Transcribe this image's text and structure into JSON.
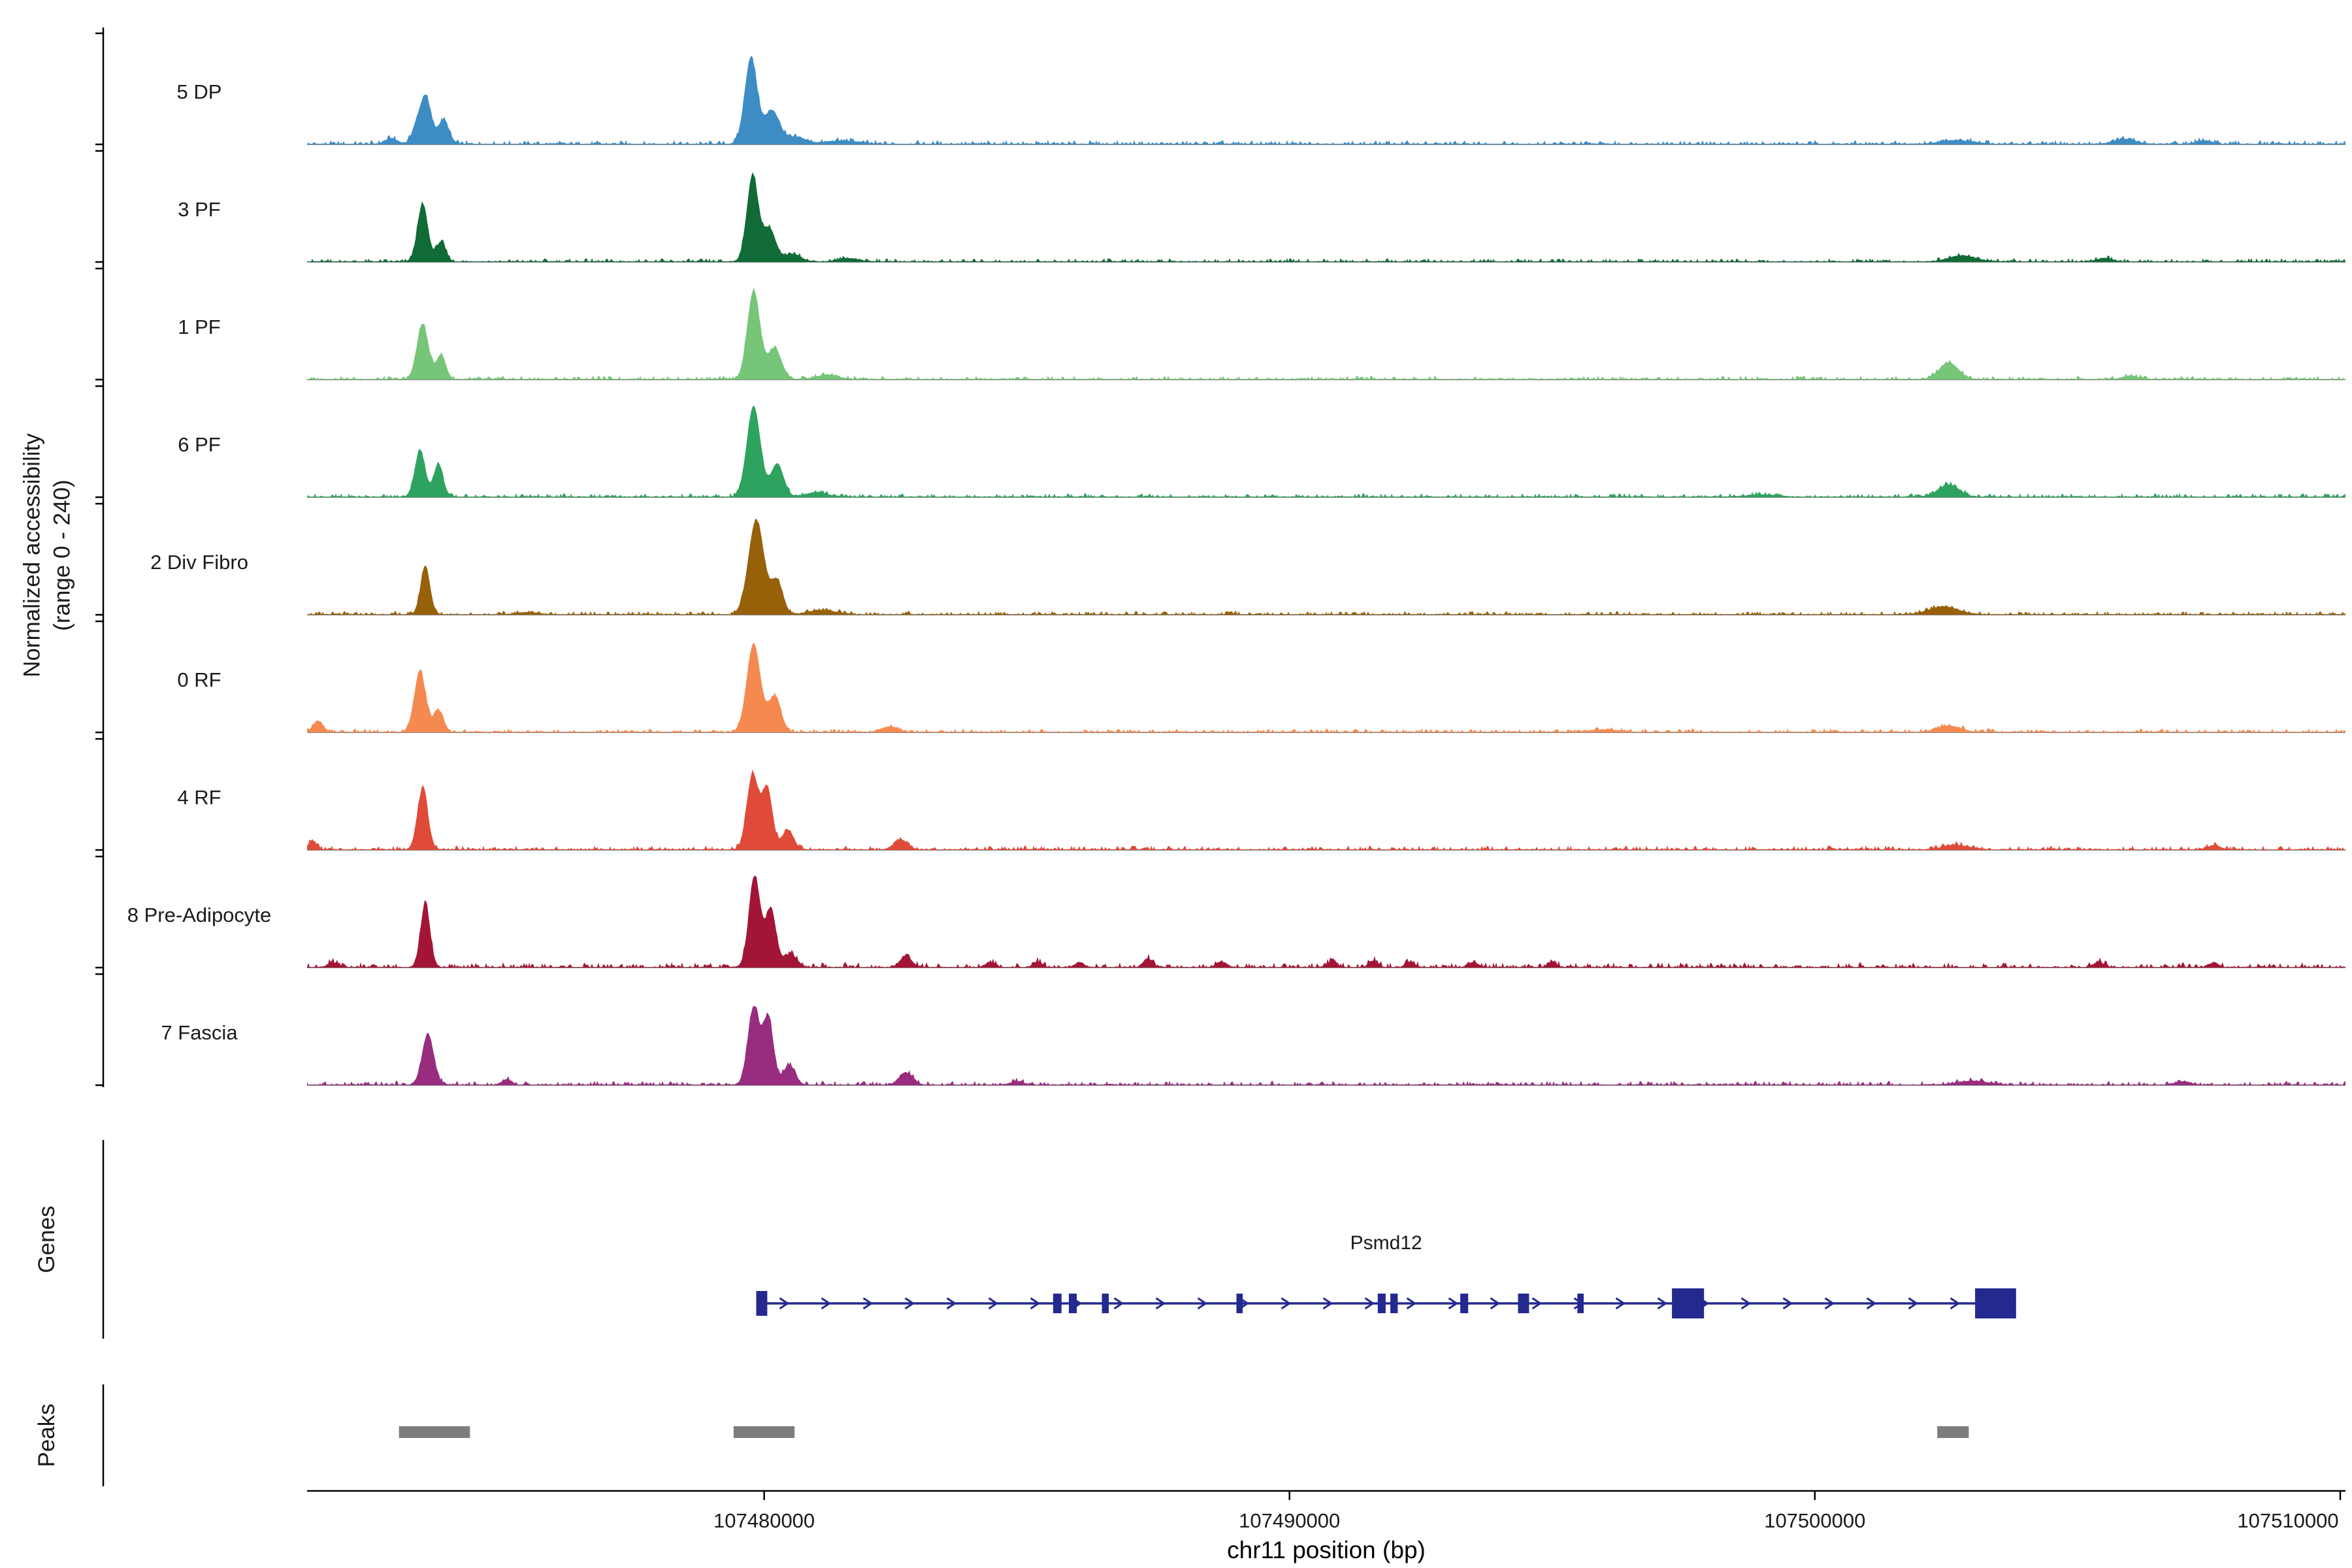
{
  "figure": {
    "y_axis": {
      "label_line1": "Normalized accessibility",
      "label_line2": "(range 0 - 240)"
    },
    "genes_section_label": "Genes",
    "peaks_section_label": "Peaks",
    "x_axis": {
      "title": "chr11 position (bp)",
      "tick_values": [
        107480000,
        107490000,
        107500000,
        107510000
      ],
      "domain": [
        107471300,
        107510100
      ]
    }
  },
  "chart_data": {
    "type": "area",
    "title": "",
    "xlabel": "chr11 position (bp)",
    "ylabel": "Normalized accessibility (range 0 - 240)",
    "x_domain_bp": [
      107471300,
      107510100
    ],
    "accessibility_range": [
      0,
      240
    ],
    "gene_color": "#23298f",
    "peak_bar_color": "#7d7d7d",
    "tracks": [
      {
        "label": "5 DP",
        "color": "#3d8dc4",
        "noise": 0.018,
        "peaks": [
          [
            107473350,
            0.1,
            80
          ],
          [
            107473550,
            0.44,
            110
          ],
          [
            107473900,
            0.22,
            100
          ],
          [
            107479750,
            0.78,
            120
          ],
          [
            107480150,
            0.3,
            140
          ],
          [
            107480600,
            0.06,
            200
          ],
          [
            107472900,
            0.05,
            120
          ],
          [
            107481500,
            0.03,
            300
          ],
          [
            107502700,
            0.035,
            300
          ],
          [
            107505900,
            0.045,
            200
          ],
          [
            107507400,
            0.03,
            150
          ]
        ]
      },
      {
        "label": "3 PF",
        "color": "#116b36",
        "noise": 0.015,
        "peaks": [
          [
            107473500,
            0.52,
            100
          ],
          [
            107473850,
            0.18,
            90
          ],
          [
            107479780,
            0.78,
            110
          ],
          [
            107480100,
            0.3,
            120
          ],
          [
            107480550,
            0.07,
            150
          ],
          [
            107502800,
            0.055,
            250
          ],
          [
            107481600,
            0.03,
            200
          ],
          [
            107505500,
            0.03,
            150
          ]
        ]
      },
      {
        "label": "1 PF",
        "color": "#76c578",
        "noise": 0.016,
        "peaks": [
          [
            107473500,
            0.5,
            110
          ],
          [
            107473850,
            0.22,
            90
          ],
          [
            107479800,
            0.8,
            120
          ],
          [
            107480200,
            0.28,
            130
          ],
          [
            107502550,
            0.15,
            180
          ],
          [
            107481200,
            0.04,
            200
          ],
          [
            107506000,
            0.03,
            150
          ]
        ]
      },
      {
        "label": "6 PF",
        "color": "#2ea360",
        "noise": 0.016,
        "peaks": [
          [
            107473450,
            0.42,
            100
          ],
          [
            107473800,
            0.3,
            90
          ],
          [
            107479800,
            0.82,
            130
          ],
          [
            107480250,
            0.3,
            120
          ],
          [
            107502550,
            0.11,
            200
          ],
          [
            107481000,
            0.04,
            200
          ],
          [
            107499000,
            0.02,
            300
          ]
        ]
      },
      {
        "label": "2 Div Fibro",
        "color": "#97610a",
        "noise": 0.015,
        "peaks": [
          [
            107473550,
            0.44,
            90
          ],
          [
            107479850,
            0.85,
            150
          ],
          [
            107480250,
            0.3,
            110
          ],
          [
            107502450,
            0.07,
            280
          ],
          [
            107481100,
            0.04,
            250
          ],
          [
            107475500,
            0.02,
            200
          ]
        ]
      },
      {
        "label": "0 RF",
        "color": "#f58a50",
        "noise": 0.016,
        "peaks": [
          [
            107471500,
            0.1,
            90
          ],
          [
            107473450,
            0.55,
            110
          ],
          [
            107473800,
            0.2,
            90
          ],
          [
            107479800,
            0.8,
            130
          ],
          [
            107480200,
            0.32,
            120
          ],
          [
            107482400,
            0.05,
            150
          ],
          [
            107502550,
            0.055,
            220
          ],
          [
            107496000,
            0.02,
            300
          ]
        ]
      },
      {
        "label": "4 RF",
        "color": "#e04b39",
        "noise": 0.018,
        "peaks": [
          [
            107471400,
            0.08,
            80
          ],
          [
            107473500,
            0.55,
            100
          ],
          [
            107479780,
            0.68,
            110
          ],
          [
            107480060,
            0.55,
            100
          ],
          [
            107480450,
            0.18,
            110
          ],
          [
            107482600,
            0.09,
            130
          ],
          [
            107502700,
            0.04,
            250
          ],
          [
            107507600,
            0.04,
            120
          ]
        ]
      },
      {
        "label": "8 Pre-Adipocyte",
        "color": "#a31536",
        "noise": 0.022,
        "peaks": [
          [
            107473550,
            0.58,
            90
          ],
          [
            107479820,
            0.82,
            110
          ],
          [
            107480130,
            0.52,
            100
          ],
          [
            107480500,
            0.12,
            120
          ],
          [
            107482700,
            0.1,
            110
          ],
          [
            107484300,
            0.045,
            90
          ],
          [
            107485200,
            0.05,
            80
          ],
          [
            107486000,
            0.045,
            80
          ],
          [
            107487300,
            0.08,
            80
          ],
          [
            107488700,
            0.05,
            90
          ],
          [
            107490800,
            0.045,
            90
          ],
          [
            107491600,
            0.06,
            80
          ],
          [
            107492300,
            0.05,
            80
          ],
          [
            107493500,
            0.045,
            90
          ],
          [
            107495000,
            0.04,
            90
          ],
          [
            107505400,
            0.05,
            90
          ],
          [
            107507600,
            0.045,
            80
          ],
          [
            107471800,
            0.04,
            100
          ]
        ]
      },
      {
        "label": "7 Fascia",
        "color": "#982d80",
        "noise": 0.018,
        "peaks": [
          [
            107473600,
            0.46,
            110
          ],
          [
            107479800,
            0.7,
            110
          ],
          [
            107480080,
            0.6,
            100
          ],
          [
            107480480,
            0.18,
            110
          ],
          [
            107482700,
            0.11,
            130
          ],
          [
            107475100,
            0.05,
            90
          ],
          [
            107484800,
            0.03,
            120
          ],
          [
            107503000,
            0.035,
            300
          ],
          [
            107507000,
            0.03,
            150
          ]
        ]
      }
    ],
    "gene": {
      "name": "Psmd12",
      "chrom": "chr11",
      "strand": "+",
      "start": 107479850,
      "end": 107503830,
      "exons": [
        [
          107479850,
          107480060,
          "tall"
        ],
        [
          107485500,
          107485660,
          "thin"
        ],
        [
          107485800,
          107485950,
          "thin"
        ],
        [
          107486430,
          107486560,
          "thin"
        ],
        [
          107488990,
          107489110,
          "thin"
        ],
        [
          107491680,
          107491830,
          "thin"
        ],
        [
          107491920,
          107492060,
          "thin"
        ],
        [
          107493250,
          107493400,
          "thin"
        ],
        [
          107494350,
          107494560,
          "thin"
        ],
        [
          107495480,
          107495600,
          "thin"
        ],
        [
          107497280,
          107497890,
          "large"
        ],
        [
          107503050,
          107503830,
          "large"
        ]
      ]
    },
    "peak_regions": [
      [
        107473050,
        107474400
      ],
      [
        107479420,
        107480580
      ],
      [
        107502330,
        107502930
      ]
    ]
  }
}
